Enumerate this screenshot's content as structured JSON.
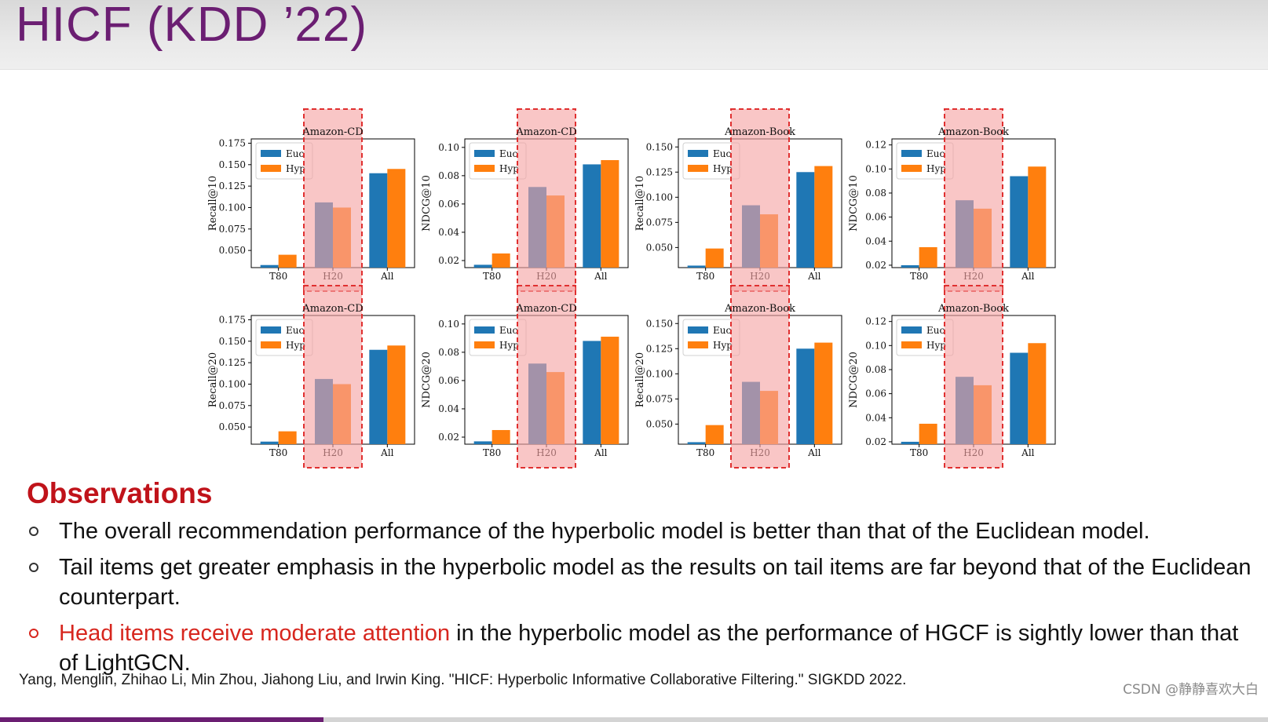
{
  "slide": {
    "title": "HICF (KDD ’22)"
  },
  "colors": {
    "euc": "#1f77b4",
    "hyp": "#ff7f0e",
    "highlight_fill": "#f6a3a3",
    "highlight_border": "#e03030",
    "title": "#6b1e72",
    "accent_red": "#c0131a"
  },
  "chart_data": [
    {
      "type": "bar",
      "title": "Amazon-CD",
      "ylabel": "Recall@10",
      "categories": [
        "T80",
        "H20",
        "All"
      ],
      "yticks": [
        "0.050",
        "0.075",
        "0.100",
        "0.125",
        "0.150",
        "0.175"
      ],
      "ylim": [
        0.03,
        0.18
      ],
      "series": [
        {
          "name": "Euc",
          "values": [
            0.033,
            0.106,
            0.14
          ]
        },
        {
          "name": "Hyp",
          "values": [
            0.045,
            0.1,
            0.145
          ]
        }
      ],
      "legend": "top-left",
      "highlight_category": "H20"
    },
    {
      "type": "bar",
      "title": "Amazon-CD",
      "ylabel": "NDCG@10",
      "categories": [
        "T80",
        "H20",
        "All"
      ],
      "yticks": [
        "0.02",
        "0.04",
        "0.06",
        "0.08",
        "0.10"
      ],
      "ylim": [
        0.015,
        0.106
      ],
      "series": [
        {
          "name": "Euc",
          "values": [
            0.017,
            0.072,
            0.088
          ]
        },
        {
          "name": "Hyp",
          "values": [
            0.025,
            0.066,
            0.091
          ]
        }
      ],
      "legend": "top-left",
      "highlight_category": "H20"
    },
    {
      "type": "bar",
      "title": "Amazon-Book",
      "ylabel": "Recall@10",
      "categories": [
        "T80",
        "H20",
        "All"
      ],
      "yticks": [
        "0.050",
        "0.075",
        "0.100",
        "0.125",
        "0.150"
      ],
      "ylim": [
        0.03,
        0.158
      ],
      "series": [
        {
          "name": "Euc",
          "values": [
            0.032,
            0.092,
            0.125
          ]
        },
        {
          "name": "Hyp",
          "values": [
            0.049,
            0.083,
            0.131
          ]
        }
      ],
      "legend": "top-left",
      "highlight_category": "H20"
    },
    {
      "type": "bar",
      "title": "Amazon-Book",
      "ylabel": "NDCG@10",
      "categories": [
        "T80",
        "H20",
        "All"
      ],
      "yticks": [
        "0.02",
        "0.04",
        "0.06",
        "0.08",
        "0.10",
        "0.12"
      ],
      "ylim": [
        0.018,
        0.125
      ],
      "series": [
        {
          "name": "Euc",
          "values": [
            0.02,
            0.074,
            0.094
          ]
        },
        {
          "name": "Hyp",
          "values": [
            0.035,
            0.067,
            0.102
          ]
        }
      ],
      "legend": "top-left",
      "highlight_category": "H20"
    },
    {
      "type": "bar",
      "title": "Amazon-CD",
      "ylabel": "Recall@20",
      "categories": [
        "T80",
        "H20",
        "All"
      ],
      "yticks": [
        "0.050",
        "0.075",
        "0.100",
        "0.125",
        "0.150",
        "0.175"
      ],
      "ylim": [
        0.03,
        0.18
      ],
      "series": [
        {
          "name": "Euc",
          "values": [
            0.033,
            0.106,
            0.14
          ]
        },
        {
          "name": "Hyp",
          "values": [
            0.045,
            0.1,
            0.145
          ]
        }
      ],
      "legend": "top-left",
      "highlight_category": "H20"
    },
    {
      "type": "bar",
      "title": "Amazon-CD",
      "ylabel": "NDCG@20",
      "categories": [
        "T80",
        "H20",
        "All"
      ],
      "yticks": [
        "0.02",
        "0.04",
        "0.06",
        "0.08",
        "0.10"
      ],
      "ylim": [
        0.015,
        0.106
      ],
      "series": [
        {
          "name": "Euc",
          "values": [
            0.017,
            0.072,
            0.088
          ]
        },
        {
          "name": "Hyp",
          "values": [
            0.025,
            0.066,
            0.091
          ]
        }
      ],
      "legend": "top-left",
      "highlight_category": "H20"
    },
    {
      "type": "bar",
      "title": "Amazon-Book",
      "ylabel": "Recall@20",
      "categories": [
        "T80",
        "H20",
        "All"
      ],
      "yticks": [
        "0.050",
        "0.075",
        "0.100",
        "0.125",
        "0.150"
      ],
      "ylim": [
        0.03,
        0.158
      ],
      "series": [
        {
          "name": "Euc",
          "values": [
            0.032,
            0.092,
            0.125
          ]
        },
        {
          "name": "Hyp",
          "values": [
            0.049,
            0.083,
            0.131
          ]
        }
      ],
      "legend": "top-left",
      "highlight_category": "H20"
    },
    {
      "type": "bar",
      "title": "Amazon-Book",
      "ylabel": "NDCG@20",
      "categories": [
        "T80",
        "H20",
        "All"
      ],
      "yticks": [
        "0.02",
        "0.04",
        "0.06",
        "0.08",
        "0.10",
        "0.12"
      ],
      "ylim": [
        0.018,
        0.125
      ],
      "series": [
        {
          "name": "Euc",
          "values": [
            0.02,
            0.074,
            0.094
          ]
        },
        {
          "name": "Hyp",
          "values": [
            0.035,
            0.067,
            0.102
          ]
        }
      ],
      "legend": "top-left",
      "highlight_category": "H20"
    }
  ],
  "observations": {
    "heading": "Observations",
    "bullet_1": "The overall recommendation performance of the hyperbolic model is better than that of the Euclidean model.",
    "bullet_2": "Tail items get greater emphasis in the hyperbolic model as the results on tail items are far beyond that of the Euclidean counterpart.",
    "bullet_3_highlight": "Head items receive moderate attention",
    "bullet_3_rest": " in the hyperbolic model as the performance of HGCF is sightly lower than that of LightGCN."
  },
  "citation": "Yang, Menglin, Zhihao Li, Min Zhou, Jiahong Liu, and Irwin King. \"HICF: Hyperbolic Informative Collaborative Filtering.\"  SIGKDD 2022.",
  "watermark": "CSDN @静静喜欢大白",
  "progress": {
    "fraction": 0.255
  }
}
